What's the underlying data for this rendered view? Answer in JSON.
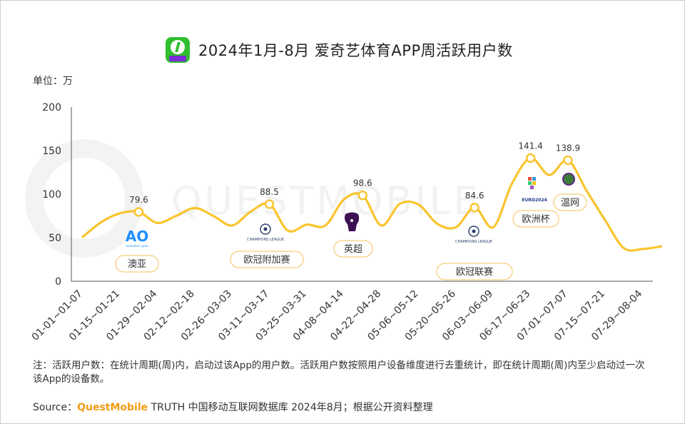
{
  "header": {
    "title": "2024年1月-8月 爱奇艺体育APP周活跃用户数",
    "unit": "单位：万",
    "watermark": "QUESTMOBILE"
  },
  "colors": {
    "line": "#F9C42D",
    "marker_fill": "#ffffff",
    "brand": "#F39C12",
    "event_border": "#F5C05A"
  },
  "chart_data": {
    "type": "line",
    "title": "2024年1月-8月 爱奇艺体育APP周活跃用户数",
    "ylabel": "单位：万",
    "ylim": [
      0,
      200
    ],
    "yticks": [
      0,
      50,
      100,
      150,
      200
    ],
    "grid": false,
    "categories": [
      "01-01~01-07",
      "01-15~01-21",
      "01-29~02-04",
      "02-12~02-18",
      "02-26~03-03",
      "03-11~03-17",
      "03-25~03-31",
      "04-08~04-14",
      "04-22~04-28",
      "05-06~05-12",
      "05-20~05-26",
      "06-03~06-09",
      "06-17~06-23",
      "07-01~07-07",
      "07-15~07-21",
      "07-29~08-04"
    ],
    "series": [
      {
        "name": "周活跃用户数",
        "x": [
          0,
          0.5,
          1,
          1.5,
          2,
          2.5,
          3,
          3.5,
          4,
          4.5,
          5,
          5.5,
          6,
          6.5,
          7,
          7.5,
          8,
          8.5,
          9,
          9.5,
          10,
          10.5,
          11,
          11.5,
          12,
          12.5,
          13,
          13.5,
          14,
          14.5,
          15,
          15.5
        ],
        "values": [
          51,
          68,
          78,
          79.6,
          67,
          75,
          84,
          75,
          64,
          80,
          88.5,
          58,
          65,
          64,
          94,
          98.6,
          64,
          89,
          88,
          66,
          62,
          84.6,
          62,
          112,
          141.4,
          122,
          138.9,
          104,
          70,
          38,
          37,
          40
        ]
      }
    ],
    "data_labels": [
      {
        "x": 1.5,
        "value": 79.6,
        "text": "79.6"
      },
      {
        "x": 5,
        "value": 88.5,
        "text": "88.5"
      },
      {
        "x": 7.5,
        "value": 98.6,
        "text": "98.6"
      },
      {
        "x": 10.5,
        "value": 84.6,
        "text": "84.6"
      },
      {
        "x": 12,
        "value": 141.4,
        "text": "141.4"
      },
      {
        "x": 13,
        "value": 138.9,
        "text": "138.9"
      }
    ],
    "events": [
      {
        "label": "澳亚",
        "logo": "AO",
        "logo_caption": "australian open"
      },
      {
        "label": "欧冠附加赛",
        "logo": "CHAMPIONS LEAGUE",
        "logo_caption": ""
      },
      {
        "label": "英超",
        "logo": "premier-league-lion-icon",
        "logo_caption": ""
      },
      {
        "label": "欧冠联赛",
        "logo": "CHAMPIONS LEAGUE",
        "logo_caption": ""
      },
      {
        "label": "欧洲杯",
        "logo": "EURO2024",
        "logo_caption": ""
      },
      {
        "label": "温网",
        "logo": "wimbledon-icon",
        "logo_caption": ""
      }
    ]
  },
  "footer": {
    "note": "注：活跃用户数：在统计周期(周)内，启动过该App的用户数。活跃用户数按照用户设备维度进行去重统计，即在统计周期(周)内至少启动过一次该App的设备数。",
    "source_prefix": "Source：",
    "source_brand": "QuestMobile",
    "source_rest": " TRUTH 中国移动互联网数据库 2024年8月；根据公开资料整理"
  }
}
